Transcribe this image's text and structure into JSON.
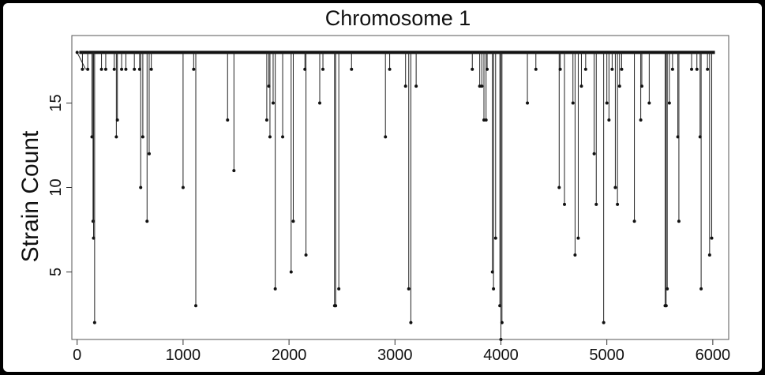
{
  "chart_data": {
    "type": "line",
    "title": "Chromosome  1",
    "xlabel": "",
    "ylabel": "Strain Count",
    "xlim": [
      -50,
      6150
    ],
    "ylim": [
      1,
      19
    ],
    "baseline": 18,
    "xticks": [
      0,
      1000,
      2000,
      3000,
      4000,
      5000,
      6000
    ],
    "yticks": [
      5,
      10,
      15
    ],
    "x_start": 0,
    "x_end": 6020,
    "grid": false,
    "legend": "none",
    "dips": [
      {
        "x": 50,
        "y": 17
      },
      {
        "x": 100,
        "y": 17
      },
      {
        "x": 140,
        "y": 13
      },
      {
        "x": 150,
        "y": 8
      },
      {
        "x": 155,
        "y": 7
      },
      {
        "x": 165,
        "y": 2
      },
      {
        "x": 230,
        "y": 17
      },
      {
        "x": 270,
        "y": 17
      },
      {
        "x": 350,
        "y": 17
      },
      {
        "x": 370,
        "y": 13
      },
      {
        "x": 380,
        "y": 14
      },
      {
        "x": 420,
        "y": 17
      },
      {
        "x": 460,
        "y": 17
      },
      {
        "x": 540,
        "y": 17
      },
      {
        "x": 590,
        "y": 17
      },
      {
        "x": 600,
        "y": 10
      },
      {
        "x": 620,
        "y": 13
      },
      {
        "x": 660,
        "y": 8
      },
      {
        "x": 680,
        "y": 12
      },
      {
        "x": 700,
        "y": 17
      },
      {
        "x": 1000,
        "y": 10
      },
      {
        "x": 1100,
        "y": 17
      },
      {
        "x": 1120,
        "y": 3
      },
      {
        "x": 1420,
        "y": 14
      },
      {
        "x": 1480,
        "y": 11
      },
      {
        "x": 1790,
        "y": 14
      },
      {
        "x": 1810,
        "y": 16
      },
      {
        "x": 1820,
        "y": 13
      },
      {
        "x": 1850,
        "y": 15
      },
      {
        "x": 1870,
        "y": 4
      },
      {
        "x": 1940,
        "y": 13
      },
      {
        "x": 2020,
        "y": 5
      },
      {
        "x": 2040,
        "y": 8
      },
      {
        "x": 2150,
        "y": 17
      },
      {
        "x": 2160,
        "y": 6
      },
      {
        "x": 2290,
        "y": 15
      },
      {
        "x": 2320,
        "y": 17
      },
      {
        "x": 2430,
        "y": 3
      },
      {
        "x": 2440,
        "y": 3
      },
      {
        "x": 2470,
        "y": 4
      },
      {
        "x": 2590,
        "y": 17
      },
      {
        "x": 2910,
        "y": 13
      },
      {
        "x": 2950,
        "y": 17
      },
      {
        "x": 3100,
        "y": 16
      },
      {
        "x": 3130,
        "y": 4
      },
      {
        "x": 3150,
        "y": 2
      },
      {
        "x": 3200,
        "y": 16
      },
      {
        "x": 3730,
        "y": 17
      },
      {
        "x": 3800,
        "y": 16
      },
      {
        "x": 3820,
        "y": 16
      },
      {
        "x": 3840,
        "y": 14
      },
      {
        "x": 3860,
        "y": 14
      },
      {
        "x": 3870,
        "y": 17
      },
      {
        "x": 3920,
        "y": 5
      },
      {
        "x": 3930,
        "y": 4
      },
      {
        "x": 3950,
        "y": 7
      },
      {
        "x": 3990,
        "y": 3
      },
      {
        "x": 4000,
        "y": 1
      },
      {
        "x": 4010,
        "y": 2
      },
      {
        "x": 4250,
        "y": 15
      },
      {
        "x": 4330,
        "y": 17
      },
      {
        "x": 4550,
        "y": 10
      },
      {
        "x": 4560,
        "y": 17
      },
      {
        "x": 4600,
        "y": 9
      },
      {
        "x": 4680,
        "y": 15
      },
      {
        "x": 4700,
        "y": 6
      },
      {
        "x": 4730,
        "y": 7
      },
      {
        "x": 4760,
        "y": 16
      },
      {
        "x": 4800,
        "y": 17
      },
      {
        "x": 4880,
        "y": 12
      },
      {
        "x": 4900,
        "y": 9
      },
      {
        "x": 4970,
        "y": 2
      },
      {
        "x": 5000,
        "y": 15
      },
      {
        "x": 5020,
        "y": 14
      },
      {
        "x": 5050,
        "y": 17
      },
      {
        "x": 5080,
        "y": 10
      },
      {
        "x": 5100,
        "y": 9
      },
      {
        "x": 5120,
        "y": 16
      },
      {
        "x": 5140,
        "y": 17
      },
      {
        "x": 5260,
        "y": 8
      },
      {
        "x": 5320,
        "y": 14
      },
      {
        "x": 5330,
        "y": 16
      },
      {
        "x": 5400,
        "y": 15
      },
      {
        "x": 5550,
        "y": 3
      },
      {
        "x": 5560,
        "y": 3
      },
      {
        "x": 5570,
        "y": 4
      },
      {
        "x": 5590,
        "y": 15
      },
      {
        "x": 5620,
        "y": 17
      },
      {
        "x": 5670,
        "y": 13
      },
      {
        "x": 5680,
        "y": 8
      },
      {
        "x": 5800,
        "y": 17
      },
      {
        "x": 5850,
        "y": 17
      },
      {
        "x": 5880,
        "y": 13
      },
      {
        "x": 5890,
        "y": 4
      },
      {
        "x": 5950,
        "y": 17
      },
      {
        "x": 5970,
        "y": 6
      },
      {
        "x": 5990,
        "y": 7
      }
    ]
  }
}
